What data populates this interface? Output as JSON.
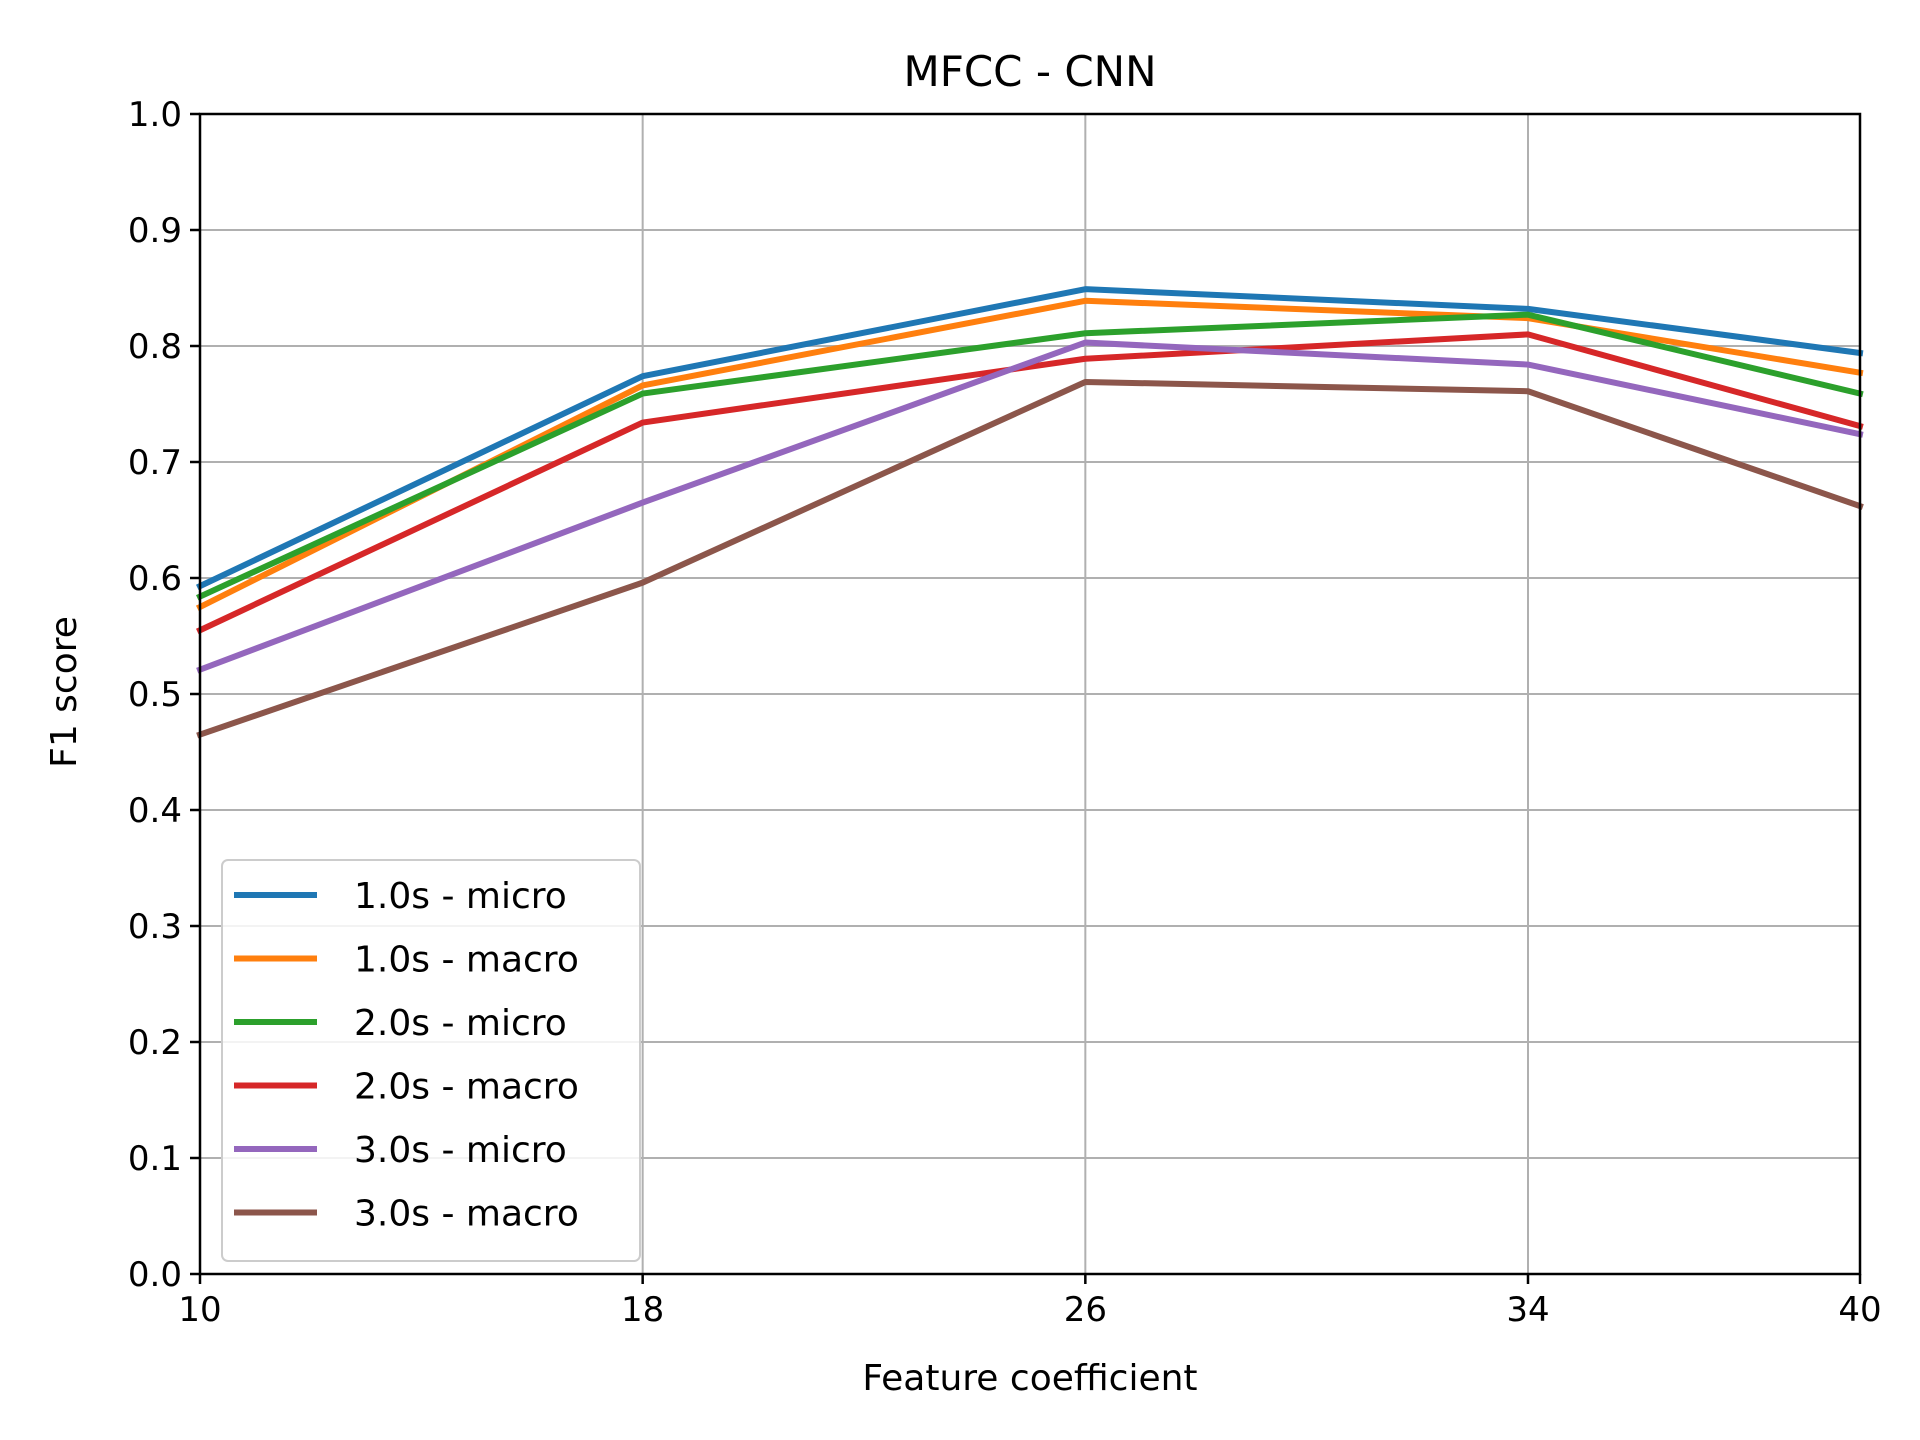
{
  "chart_data": {
    "type": "line",
    "title": "MFCC - CNN",
    "xlabel": "Feature coefficient",
    "ylabel": "F1 score",
    "x": [
      10,
      18,
      26,
      34,
      40
    ],
    "xticks": [
      "10",
      "18",
      "26",
      "34",
      "40"
    ],
    "yticks": [
      "0.0",
      "0.1",
      "0.2",
      "0.3",
      "0.4",
      "0.5",
      "0.6",
      "0.7",
      "0.8",
      "0.9",
      "1.0"
    ],
    "xlim": [
      10,
      40
    ],
    "ylim": [
      0.0,
      1.0
    ],
    "grid": true,
    "legend_position": "lower-left",
    "series": [
      {
        "name": "1.0s - micro",
        "color": "#1f77b4",
        "values": [
          0.593,
          0.774,
          0.849,
          0.832,
          0.794
        ]
      },
      {
        "name": "1.0s - macro",
        "color": "#ff7f0e",
        "values": [
          0.575,
          0.766,
          0.839,
          0.824,
          0.777
        ]
      },
      {
        "name": "2.0s - micro",
        "color": "#2ca02c",
        "values": [
          0.584,
          0.759,
          0.811,
          0.827,
          0.759
        ]
      },
      {
        "name": "2.0s - macro",
        "color": "#d62728",
        "values": [
          0.555,
          0.734,
          0.789,
          0.81,
          0.731
        ]
      },
      {
        "name": "3.0s - micro",
        "color": "#9467bd",
        "values": [
          0.521,
          0.665,
          0.803,
          0.784,
          0.724
        ]
      },
      {
        "name": "3.0s - macro",
        "color": "#8c564b",
        "values": [
          0.465,
          0.596,
          0.769,
          0.761,
          0.662
        ]
      }
    ]
  }
}
